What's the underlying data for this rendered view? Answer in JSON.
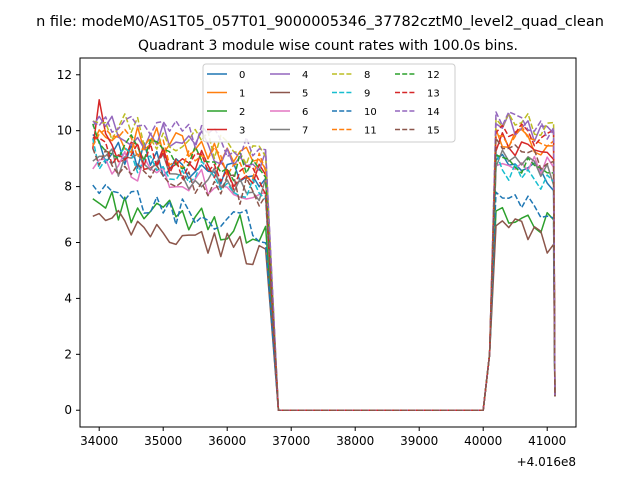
{
  "chart_data": {
    "type": "line",
    "suptitle": "n file: modeM0/AS1T05_057T01_9000005346_37782cztM0_level2_quad_clean",
    "title": "Quadrant 3 module wise count rates with 100.0s bins.",
    "xlabel": "",
    "ylabel": "",
    "x_offset_label": "+4.016e8",
    "xlim": [
      33700,
      41450
    ],
    "ylim": [
      -0.6,
      12.6
    ],
    "xticks": [
      34000,
      35000,
      36000,
      37000,
      38000,
      39000,
      40000,
      41000
    ],
    "yticks": [
      0,
      2,
      4,
      6,
      8,
      10,
      12
    ],
    "xtick_labels": [
      "34000",
      "35000",
      "36000",
      "37000",
      "38000",
      "39000",
      "40000",
      "41000"
    ],
    "ytick_labels": [
      "0",
      "2",
      "4",
      "6",
      "8",
      "10",
      "12"
    ],
    "grid": false,
    "legend_position": "top-center",
    "legend_columns": 4,
    "segments_x": {
      "seg1_start": 33900,
      "seg1_end": 36600,
      "drop_end": 36800,
      "flat_end": 40000,
      "seg2_start": 40200,
      "seg2_end": 41100
    },
    "series": [
      {
        "name": "0",
        "color": "#1f77b4",
        "dash": "solid",
        "level1": 8.6,
        "level2": 8.3
      },
      {
        "name": "1",
        "color": "#ff7f0e",
        "dash": "solid",
        "level1": 9.2,
        "level2": 9.3
      },
      {
        "name": "2",
        "color": "#2ca02c",
        "dash": "solid",
        "level1": 6.7,
        "level2": 6.6
      },
      {
        "name": "3",
        "color": "#d62728",
        "dash": "solid",
        "level1": 8.7,
        "level2": 9.0
      },
      {
        "name": "4",
        "color": "#9467bd",
        "dash": "solid",
        "level1": 9.4,
        "level2": 9.8
      },
      {
        "name": "5",
        "color": "#8c564b",
        "dash": "solid",
        "level1": 6.0,
        "level2": 6.0
      },
      {
        "name": "6",
        "color": "#e377c2",
        "dash": "solid",
        "level1": 8.2,
        "level2": 8.6
      },
      {
        "name": "7",
        "color": "#7f7f7f",
        "dash": "solid",
        "level1": 8.3,
        "level2": 8.4
      },
      {
        "name": "8",
        "color": "#bcbd22",
        "dash": "dashed",
        "level1": 9.5,
        "level2": 9.9
      },
      {
        "name": "9",
        "color": "#17becf",
        "dash": "dashed",
        "level1": 8.4,
        "level2": 8.2
      },
      {
        "name": "10",
        "color": "#1f77b4",
        "dash": "dashed",
        "level1": 6.9,
        "level2": 7.0
      },
      {
        "name": "11",
        "color": "#ff7f0e",
        "dash": "dashed",
        "level1": 9.0,
        "level2": 9.4
      },
      {
        "name": "12",
        "color": "#2ca02c",
        "dash": "dashed",
        "level1": 8.9,
        "level2": 8.6
      },
      {
        "name": "13",
        "color": "#d62728",
        "dash": "dashed",
        "level1": 8.6,
        "level2": 9.6
      },
      {
        "name": "14",
        "color": "#9467bd",
        "dash": "dashed",
        "level1": 9.6,
        "level2": 10.0
      },
      {
        "name": "15",
        "color": "#8c564b",
        "dash": "dashed",
        "level1": 8.1,
        "level2": 8.7
      }
    ]
  }
}
